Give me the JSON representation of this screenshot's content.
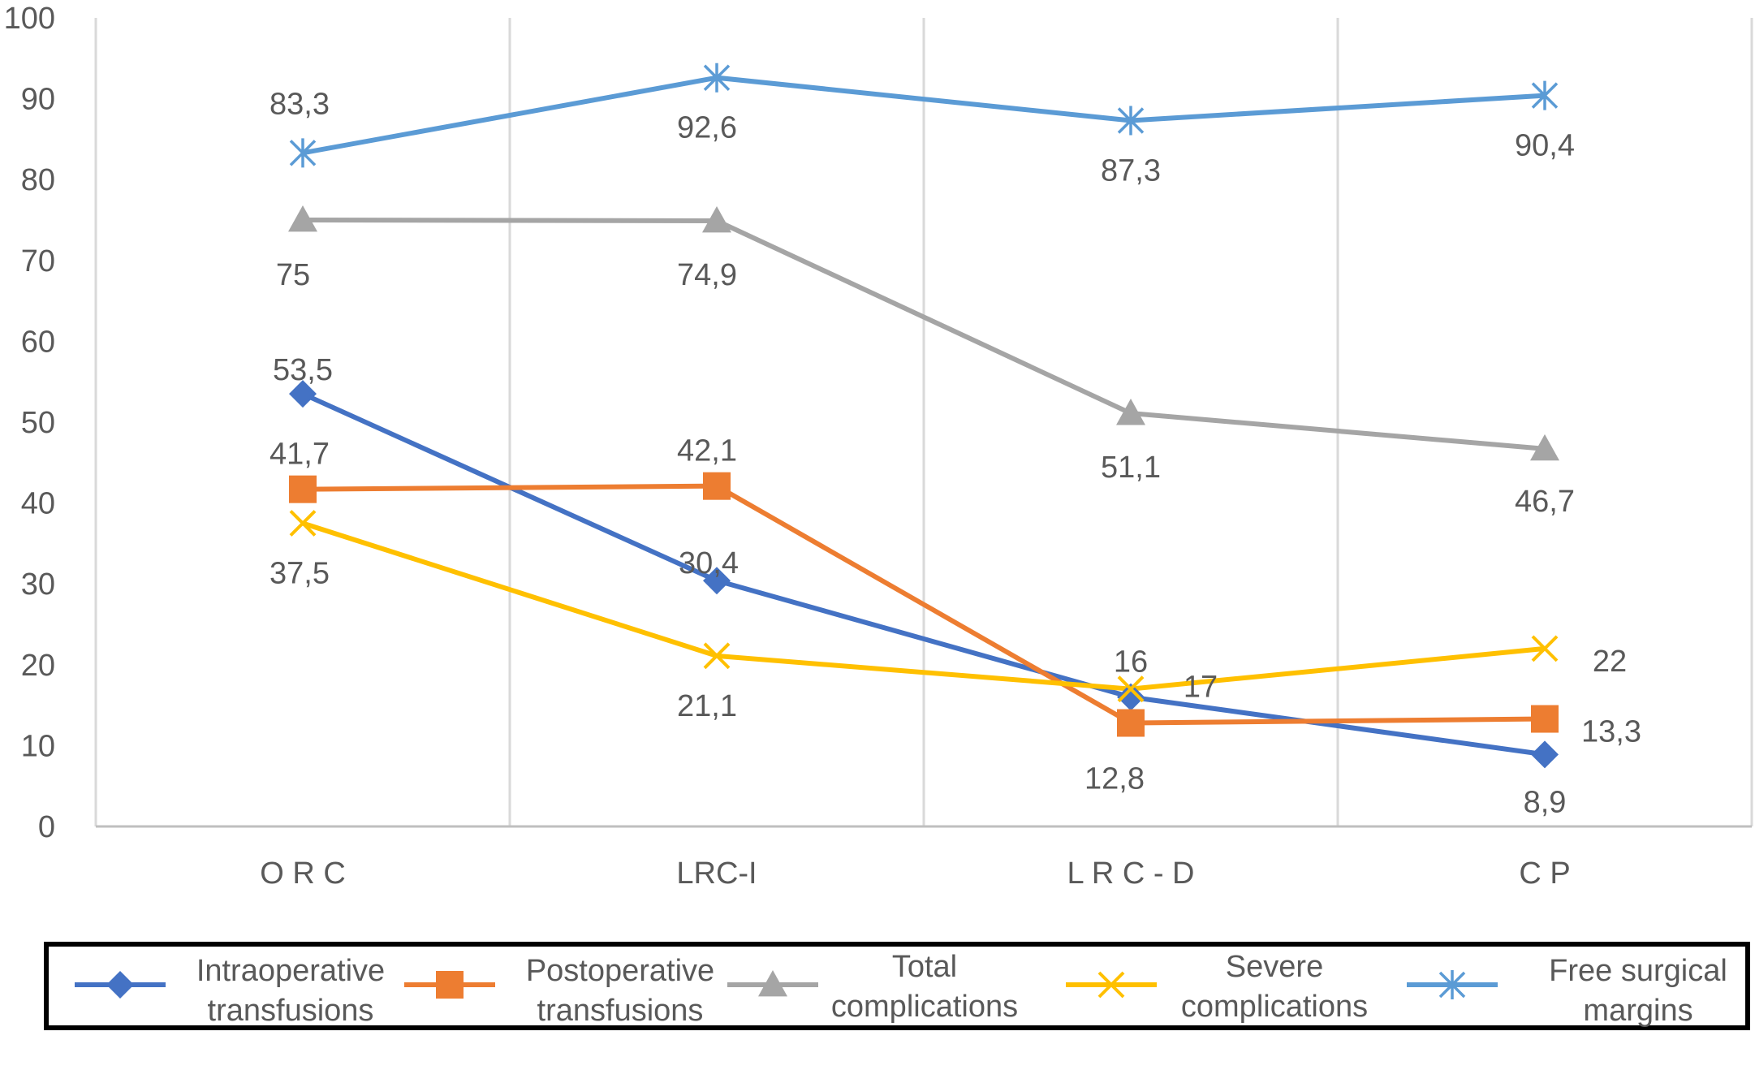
{
  "chart_data": {
    "type": "line",
    "categories": [
      "O R C",
      "LRC-I",
      "L R C - D",
      "C P"
    ],
    "ylim": [
      0,
      100
    ],
    "yticks": [
      0,
      10,
      20,
      30,
      40,
      50,
      60,
      70,
      80,
      90,
      100
    ],
    "grid": "vertical category separators",
    "legend_position": "bottom",
    "series": [
      {
        "name": "Intraoperative transfusions",
        "values": [
          53.5,
          30.4,
          16,
          8.9
        ],
        "labels": [
          "53,5",
          "30,4",
          "16",
          "8,9"
        ],
        "color": "#4472C4",
        "marker": "diamond"
      },
      {
        "name": "Postoperative transfusions",
        "values": [
          41.7,
          42.1,
          12.8,
          13.3
        ],
        "labels": [
          "41,7",
          "42,1",
          "12,8",
          "13,3"
        ],
        "color": "#ED7D31",
        "marker": "square"
      },
      {
        "name": "Total complications",
        "values": [
          75,
          74.9,
          51.1,
          46.7
        ],
        "labels": [
          "75",
          "74,9",
          "51,1",
          "46,7"
        ],
        "color": "#A5A5A5",
        "marker": "triangle"
      },
      {
        "name": "Severe complications",
        "values": [
          37.5,
          21.1,
          17,
          22
        ],
        "labels": [
          "37,5",
          "21,1",
          "17",
          "22"
        ],
        "color": "#FFC000",
        "marker": "x"
      },
      {
        "name": "Free surgical margins",
        "values": [
          83.3,
          92.6,
          87.3,
          90.4
        ],
        "labels": [
          "83,3",
          "92,6",
          "87,3",
          "90,4"
        ],
        "color": "#5B9BD5",
        "marker": "star"
      }
    ],
    "legend": [
      {
        "line1": "Intraoperative",
        "line2": "transfusions"
      },
      {
        "line1": "Postoperative",
        "line2": "transfusions"
      },
      {
        "line1": "Total",
        "line2": "complications"
      },
      {
        "line1": "Severe",
        "line2": "complications"
      },
      {
        "line1": "Free surgical",
        "line2": "margins"
      }
    ]
  }
}
